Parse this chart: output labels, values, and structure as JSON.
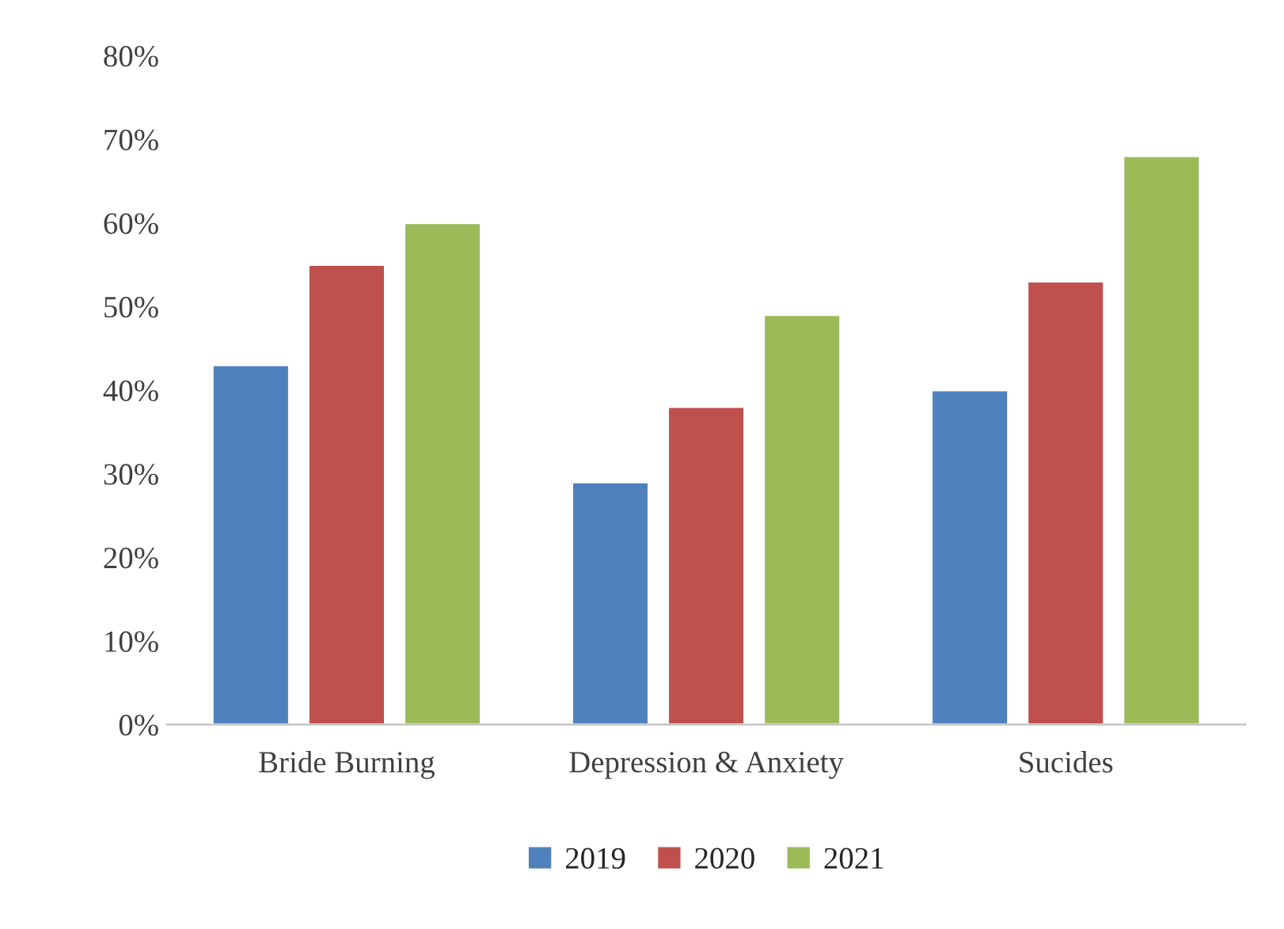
{
  "chart_data": {
    "type": "bar",
    "categories": [
      "Bride Burning",
      "Depression & Anxiety",
      "Sucides"
    ],
    "series": [
      {
        "name": "2019",
        "color": "#4f81bd",
        "values": [
          43,
          29,
          40
        ]
      },
      {
        "name": "2020",
        "color": "#c0504d",
        "values": [
          55,
          38,
          53
        ]
      },
      {
        "name": "2021",
        "color": "#9bbb59",
        "values": [
          60,
          49,
          68
        ]
      }
    ],
    "ylim": [
      0,
      80
    ],
    "yticks": [
      {
        "value": 0,
        "label": "0%"
      },
      {
        "value": 10,
        "label": "10%"
      },
      {
        "value": 20,
        "label": "20%"
      },
      {
        "value": 30,
        "label": "30%"
      },
      {
        "value": 40,
        "label": "40%"
      },
      {
        "value": 50,
        "label": "50%"
      },
      {
        "value": 60,
        "label": "60%"
      },
      {
        "value": 70,
        "label": "70%"
      },
      {
        "value": 80,
        "label": "80%"
      }
    ],
    "grid": false,
    "legend": "bottom"
  }
}
